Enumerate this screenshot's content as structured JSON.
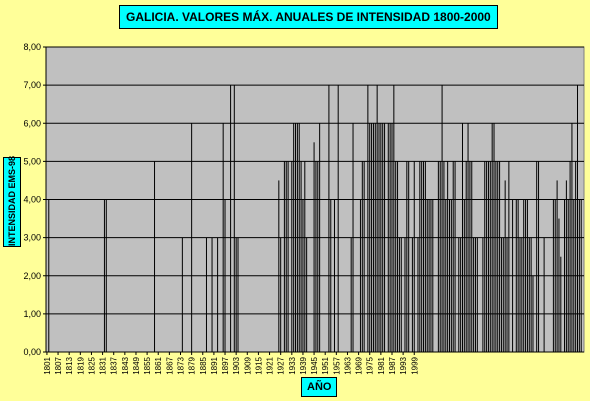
{
  "chart_data": {
    "type": "bar",
    "title": "GALICIA. VALORES MÁX. ANUALES DE INTENSIDAD 1800-2000",
    "xlabel": "AÑO",
    "ylabel": "INTENSIDAD EMS-98",
    "ylim": [
      0,
      8
    ],
    "y_ticks": [
      "0,00",
      "1,00",
      "2,00",
      "3,00",
      "4,00",
      "5,00",
      "6,00",
      "7,00",
      "8,00"
    ],
    "x_tick_labels": [
      "1801",
      "1807",
      "1813",
      "1819",
      "1825",
      "1831",
      "1837",
      "1843",
      "1849",
      "1855",
      "1861",
      "1867",
      "1873",
      "1879",
      "1885",
      "1891",
      "1897",
      "1903",
      "1909",
      "1915",
      "1921",
      "1927",
      "1933",
      "1939",
      "1945",
      "1951",
      "1957",
      "1963",
      "1969",
      "1975",
      "1981",
      "1987",
      "1993",
      "1999"
    ],
    "grid": true,
    "colors": {
      "plot_bg": "#C0C0C0",
      "bar": "#000000",
      "page_bg": "#FFFF99",
      "label_bg": "#00FFFF"
    },
    "x_start": 1801,
    "values": [
      0,
      4,
      0,
      0,
      0,
      0,
      0,
      0,
      0,
      0,
      0,
      0,
      0,
      0,
      0,
      0,
      0,
      0,
      0,
      0,
      0,
      0,
      0,
      0,
      0,
      0,
      0,
      0,
      0,
      0,
      0,
      4,
      4,
      0,
      0,
      0,
      0,
      0,
      0,
      0,
      0,
      0,
      0,
      0,
      0,
      0,
      0,
      0,
      0,
      0,
      0,
      0,
      0,
      0,
      0,
      0,
      0,
      0,
      5,
      0,
      0,
      0,
      0,
      0,
      0,
      0,
      0,
      0,
      0,
      0,
      0,
      0,
      0,
      3,
      0,
      0,
      0,
      0,
      6,
      0,
      0,
      0,
      0,
      0,
      0,
      0,
      3,
      0,
      0,
      3,
      0,
      0,
      3,
      0,
      0,
      6,
      4,
      0,
      0,
      7,
      0,
      7,
      3,
      3,
      0,
      0,
      0,
      0,
      0,
      0,
      0,
      0,
      0,
      0,
      0,
      0,
      0,
      0,
      0,
      0,
      0,
      0,
      0,
      0,
      0,
      4.5,
      3,
      0,
      5,
      5,
      5,
      0,
      5,
      6,
      6,
      6,
      6,
      5,
      4,
      5,
      3,
      0,
      0,
      0,
      5.5,
      5,
      5,
      6,
      0,
      0,
      0,
      0,
      7,
      4,
      0,
      4,
      0,
      7,
      0,
      0,
      0,
      0,
      0,
      0,
      3,
      6,
      0,
      0,
      0,
      4,
      5,
      5,
      0,
      7,
      6,
      6,
      6,
      6,
      7,
      6,
      6,
      6,
      6,
      0,
      6,
      6,
      6,
      7,
      5,
      5,
      3,
      3,
      0,
      3,
      5,
      5,
      0,
      3,
      5,
      0,
      3,
      5,
      5,
      5,
      5,
      4,
      4,
      4,
      4,
      0,
      0,
      5,
      5,
      7,
      5,
      4,
      5,
      4,
      4,
      5,
      5,
      0,
      3,
      3,
      6,
      4,
      5,
      6,
      5,
      5,
      3,
      3,
      3,
      0,
      0,
      3,
      5,
      5,
      5,
      5,
      6,
      6,
      5,
      5,
      5,
      3,
      3,
      4.5,
      3,
      5,
      0,
      4,
      0,
      4,
      4,
      3,
      3,
      4,
      4,
      4,
      3,
      3,
      2,
      0,
      5,
      5,
      0,
      0,
      3,
      0,
      0,
      0,
      0,
      4,
      4,
      4.5,
      3.5,
      2.5,
      0,
      4,
      4.5,
      4,
      5,
      6,
      4,
      5,
      7,
      4,
      4,
      0
    ]
  }
}
